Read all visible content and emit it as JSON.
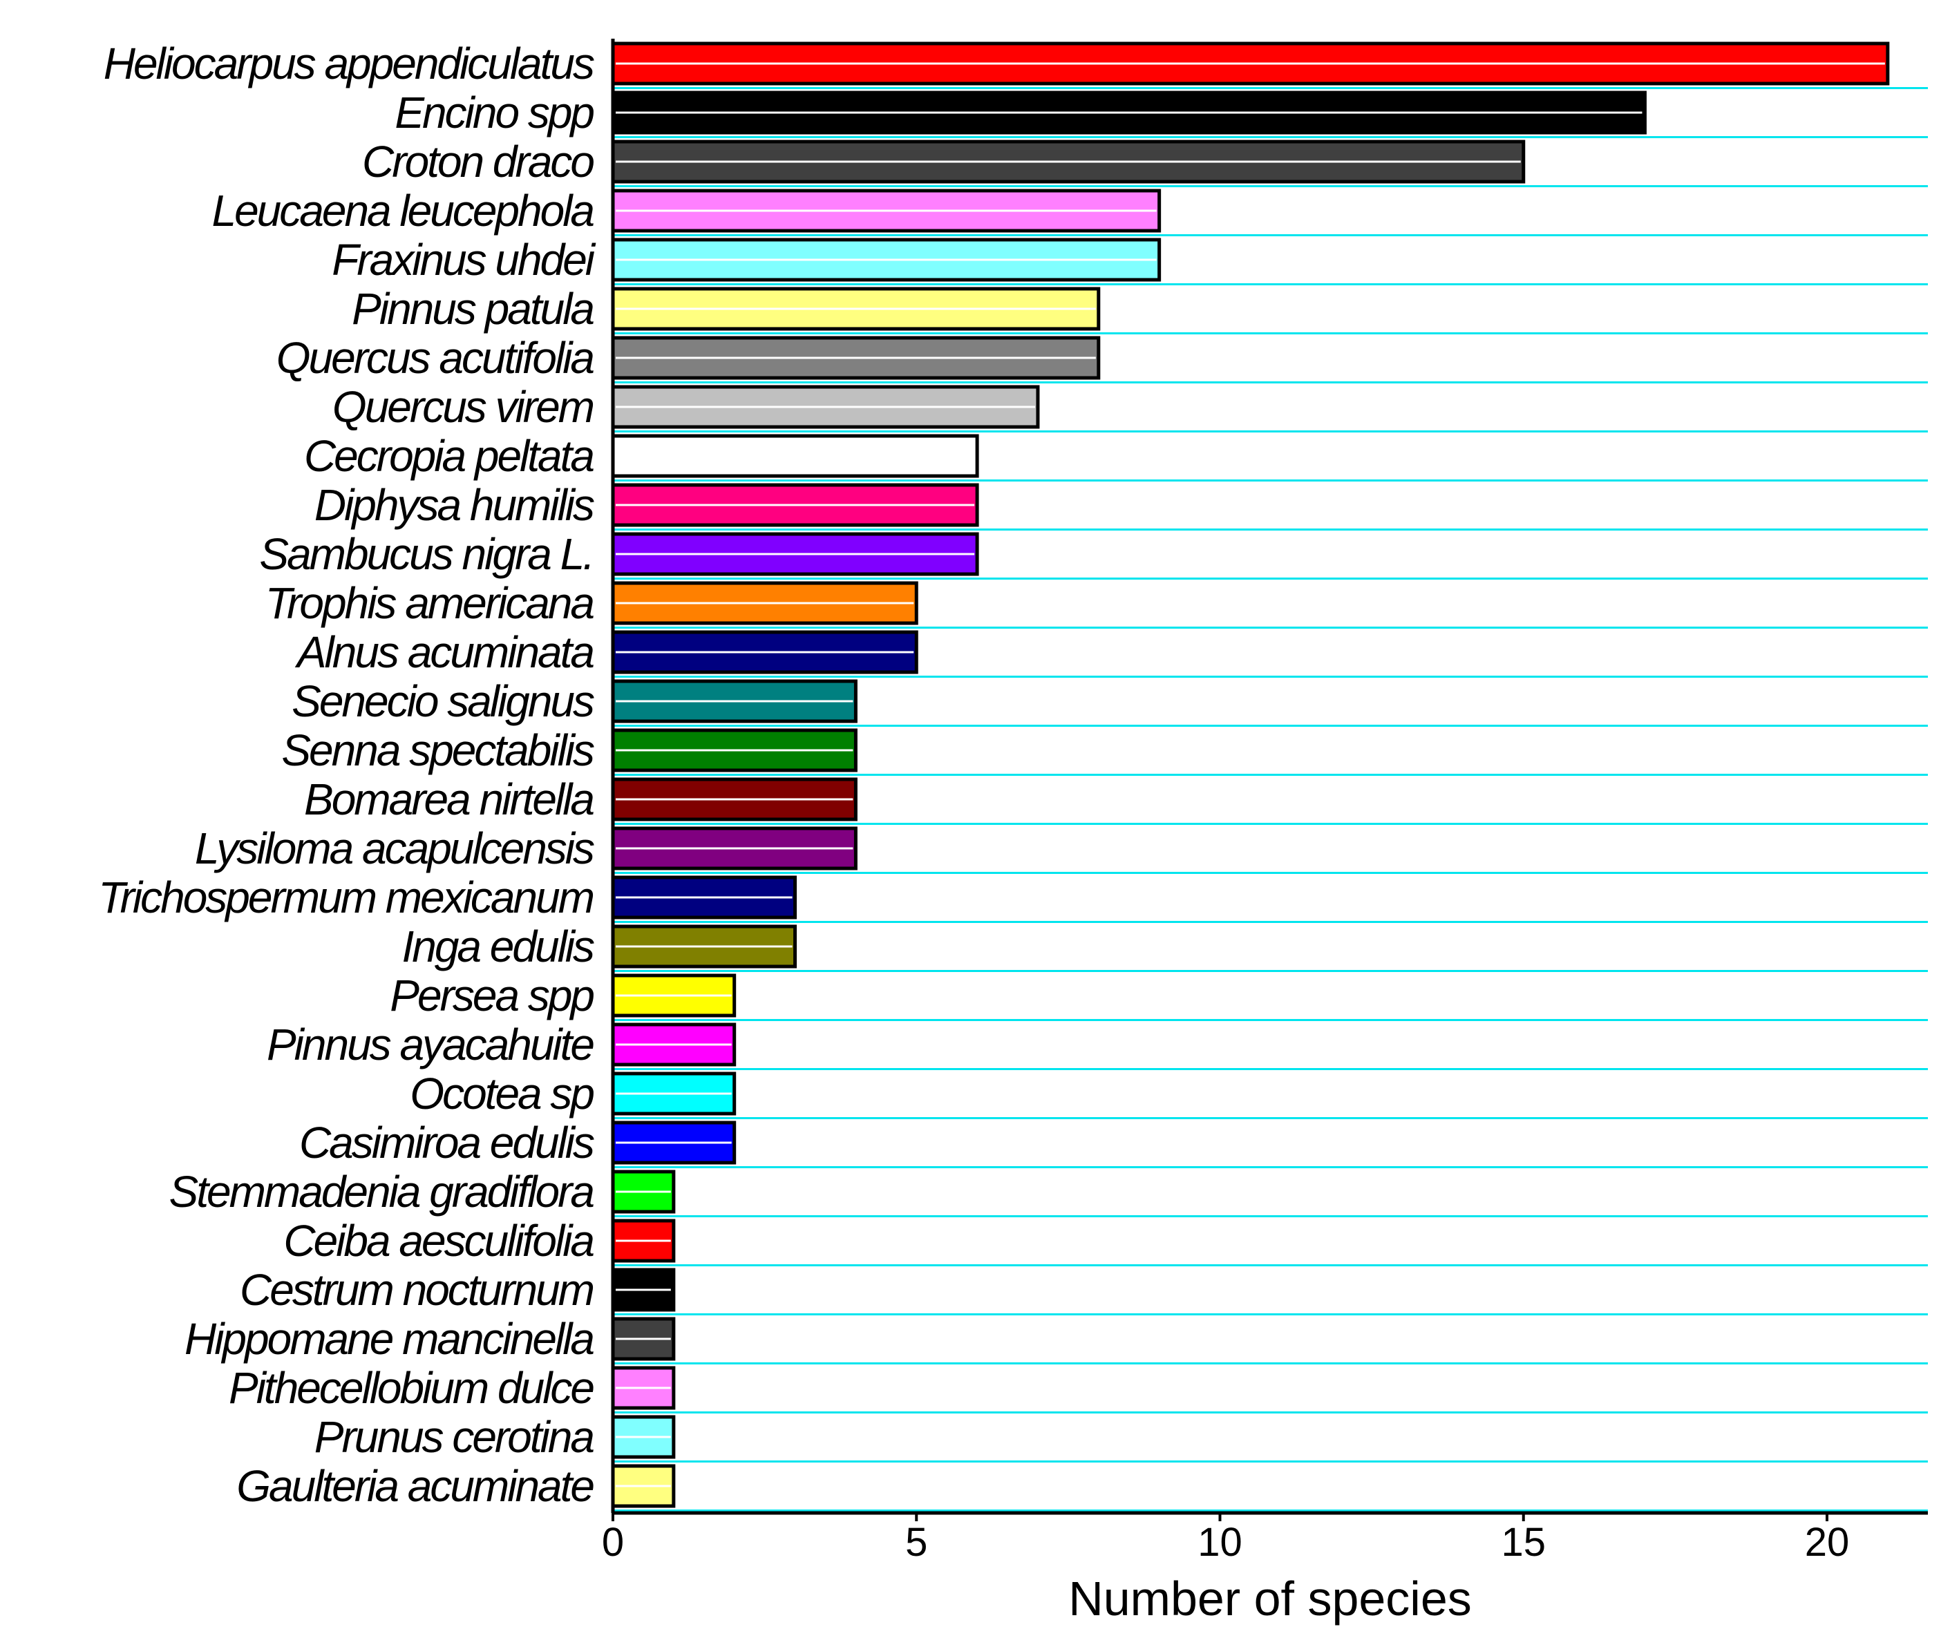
{
  "chart_data": {
    "type": "bar",
    "orientation": "horizontal",
    "title": "",
    "xlabel": "Number of species",
    "ylabel": "",
    "xlim": [
      0,
      22.5
    ],
    "xticks": [
      0,
      5,
      10,
      15,
      20
    ],
    "grid": "horizontal, cyan",
    "categories": [
      "Heliocarpus appendiculatus",
      "Encino spp",
      "Croton draco",
      "Leucaena leucephola",
      "Fraxinus uhdei",
      "Pinnus patula",
      "Quercus acutifolia",
      "Quercus virem",
      "Cecropia peltata",
      "Diphysa humilis",
      "Sambucus nigra L.",
      "Trophis americana",
      "Alnus acuminata",
      "Senecio salignus",
      "Senna spectabilis",
      "Bomarea nirtella",
      "Lysiloma acapulcensis",
      "Trichospermum mexicanum",
      "Inga edulis",
      "Persea spp",
      "Pinnus ayacahuite",
      "Ocotea sp",
      "Casimiroa edulis",
      "Stemmadenia gradiflora",
      "Ceiba aesculifolia",
      "Cestrum nocturnum",
      "Hippomane mancinella",
      "Pithecellobium dulce",
      "Prunus cerotina",
      "Gaulteria acuminate"
    ],
    "values": [
      21,
      17,
      15,
      9,
      9,
      8,
      8,
      7,
      6,
      6,
      6,
      5,
      5,
      4,
      4,
      4,
      4,
      3,
      3,
      2,
      2,
      2,
      2,
      1,
      1,
      1,
      1,
      1,
      1,
      1
    ],
    "colors": [
      "#ff0000",
      "#000000",
      "#404040",
      "#ff80ff",
      "#80ffff",
      "#ffff80",
      "#808080",
      "#c0c0c0",
      "#ffffff",
      "#ff0080",
      "#8000ff",
      "#ff8000",
      "#000080",
      "#008080",
      "#008000",
      "#800000",
      "#800080",
      "#000080",
      "#808000",
      "#ffff00",
      "#ff00ff",
      "#00ffff",
      "#0000ff",
      "#00ff00",
      "#ff0000",
      "#000000",
      "#404040",
      "#ff80ff",
      "#80ffff",
      "#ffff80"
    ],
    "grid_color": "#00e5ee",
    "axis_color": "#000000"
  }
}
